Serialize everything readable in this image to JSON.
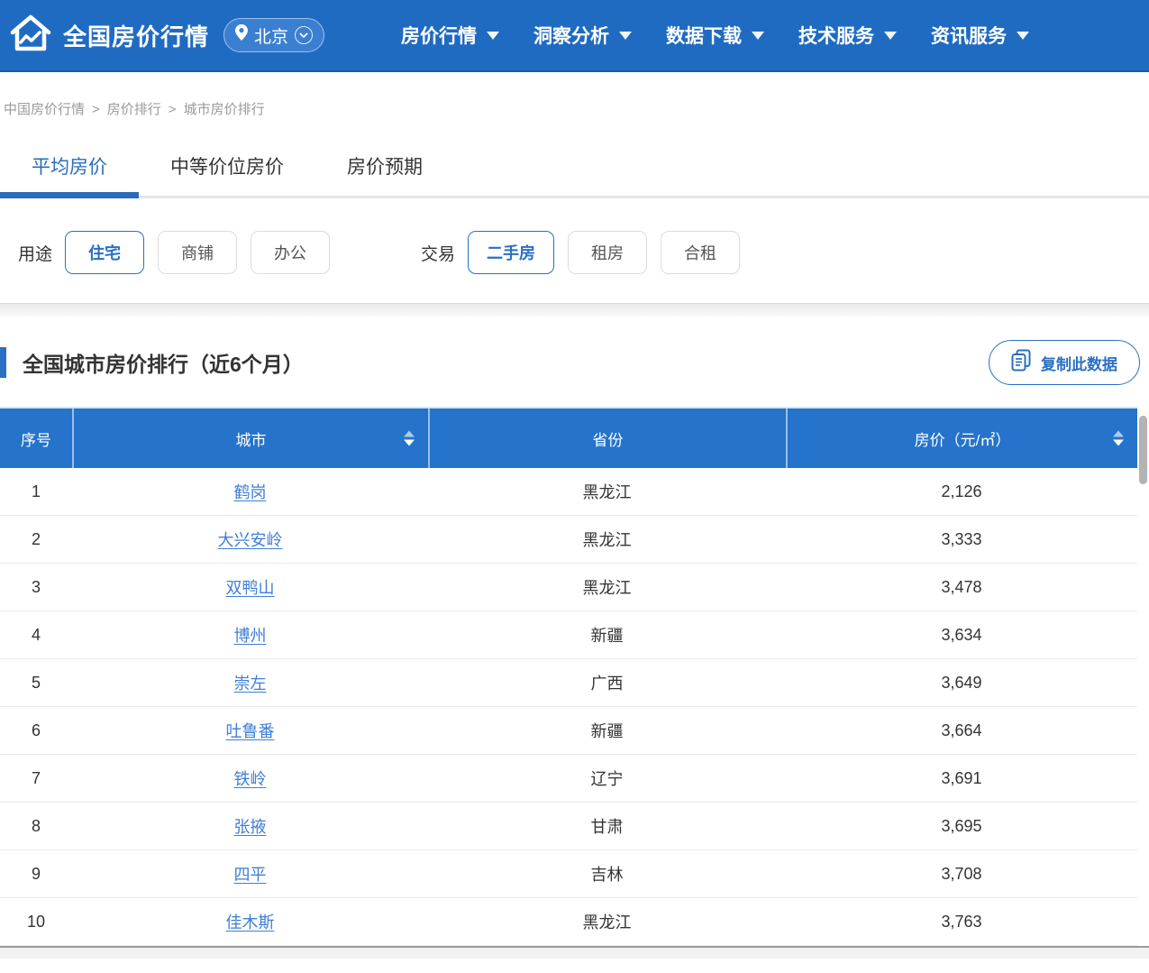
{
  "nav": {
    "brand": "全国房价行情",
    "location": {
      "city": "北京"
    },
    "items": [
      {
        "label": "房价行情"
      },
      {
        "label": "洞察分析"
      },
      {
        "label": "数据下载"
      },
      {
        "label": "技术服务"
      },
      {
        "label": "资讯服务"
      }
    ]
  },
  "breadcrumb": {
    "items": [
      "中国房价行情",
      "房价排行",
      "城市房价排行"
    ],
    "separator": ">"
  },
  "tabs": [
    {
      "label": "平均房价",
      "active": true
    },
    {
      "label": "中等价位房价",
      "active": false
    },
    {
      "label": "房价预期",
      "active": false
    }
  ],
  "filters": {
    "groups": [
      {
        "label": "用途",
        "options": [
          {
            "label": "住宅",
            "selected": true
          },
          {
            "label": "商铺",
            "selected": false
          },
          {
            "label": "办公",
            "selected": false
          }
        ]
      },
      {
        "label": "交易",
        "options": [
          {
            "label": "二手房",
            "selected": true
          },
          {
            "label": "租房",
            "selected": false
          },
          {
            "label": "合租",
            "selected": false
          }
        ]
      }
    ]
  },
  "section": {
    "title": "全国城市房价排行（近6个月）",
    "copy_button_label": "复制此数据"
  },
  "table": {
    "headers": {
      "rank": "序号",
      "city": "城市",
      "province": "省份",
      "price": "房价（元/㎡）"
    },
    "sortable_columns": [
      "city",
      "price"
    ],
    "rows": [
      {
        "rank": "1",
        "city": "鹤岗",
        "province": "黑龙江",
        "price": "2,126"
      },
      {
        "rank": "2",
        "city": "大兴安岭",
        "province": "黑龙江",
        "price": "3,333"
      },
      {
        "rank": "3",
        "city": "双鸭山",
        "province": "黑龙江",
        "price": "3,478"
      },
      {
        "rank": "4",
        "city": "博州",
        "province": "新疆",
        "price": "3,634"
      },
      {
        "rank": "5",
        "city": "崇左",
        "province": "广西",
        "price": "3,649"
      },
      {
        "rank": "6",
        "city": "吐鲁番",
        "province": "新疆",
        "price": "3,664"
      },
      {
        "rank": "7",
        "city": "铁岭",
        "province": "辽宁",
        "price": "3,691"
      },
      {
        "rank": "8",
        "city": "张掖",
        "province": "甘肃",
        "price": "3,695"
      },
      {
        "rank": "9",
        "city": "四平",
        "province": "吉林",
        "price": "3,708"
      },
      {
        "rank": "10",
        "city": "佳木斯",
        "province": "黑龙江",
        "price": "3,763"
      }
    ]
  },
  "colors": {
    "nav_background": "#1f6bc2",
    "table_header_background": "#2573cb",
    "accent_blue": "#2a6fc4",
    "link_blue": "#3f7ed6",
    "active_tab_blue": "#2b6cb8",
    "breadcrumb_grey": "#9a9a9a"
  }
}
